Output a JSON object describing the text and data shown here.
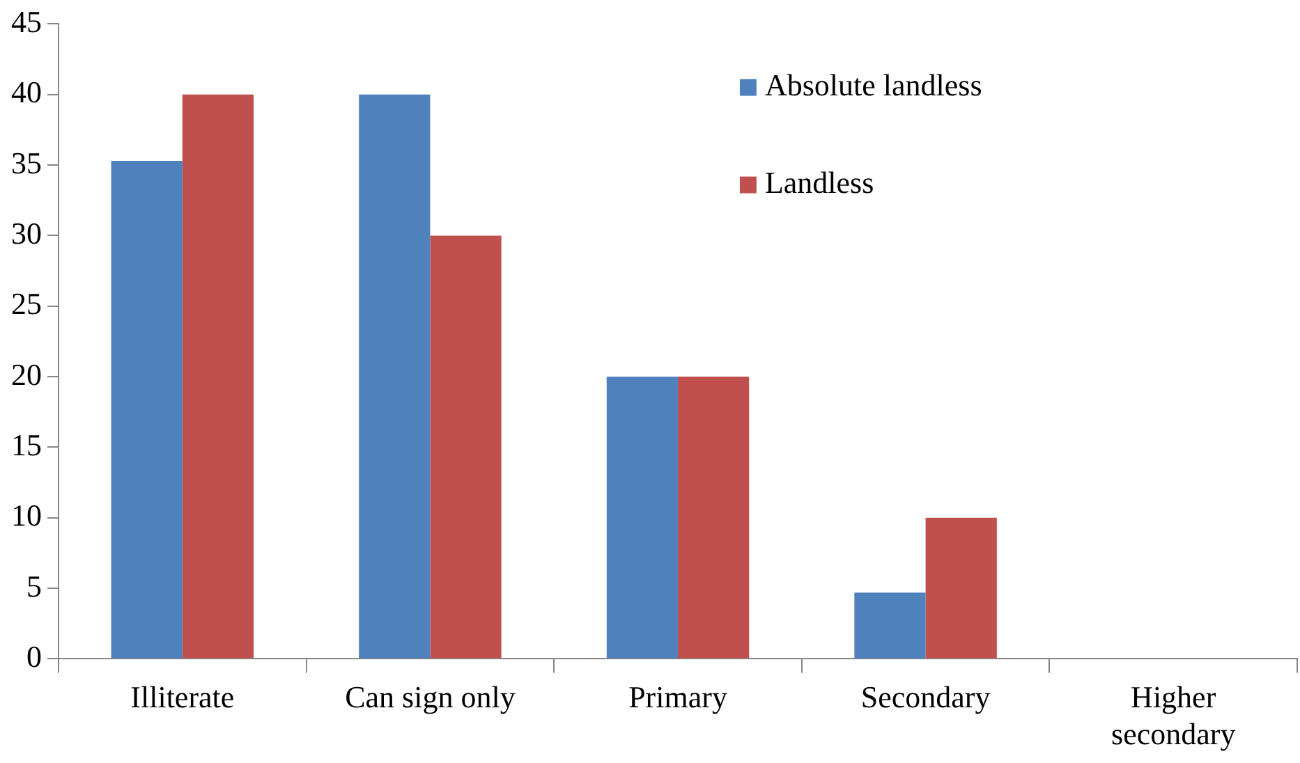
{
  "chart_data": {
    "type": "bar",
    "categories": [
      "Illiterate",
      "Can sign only",
      "Primary",
      "Secondary",
      "Higher secondary"
    ],
    "series": [
      {
        "name": "Absolute landless",
        "color": "#4f81bd",
        "values": [
          35.3,
          40,
          20,
          4.7,
          0
        ]
      },
      {
        "name": "Landless",
        "color": "#c0504d",
        "values": [
          40,
          30,
          20,
          10,
          0
        ]
      }
    ],
    "ylim": [
      0,
      45
    ],
    "yticks": [
      0,
      5,
      10,
      15,
      20,
      25,
      30,
      35,
      40,
      45
    ],
    "grid": false,
    "legend": "top right"
  }
}
